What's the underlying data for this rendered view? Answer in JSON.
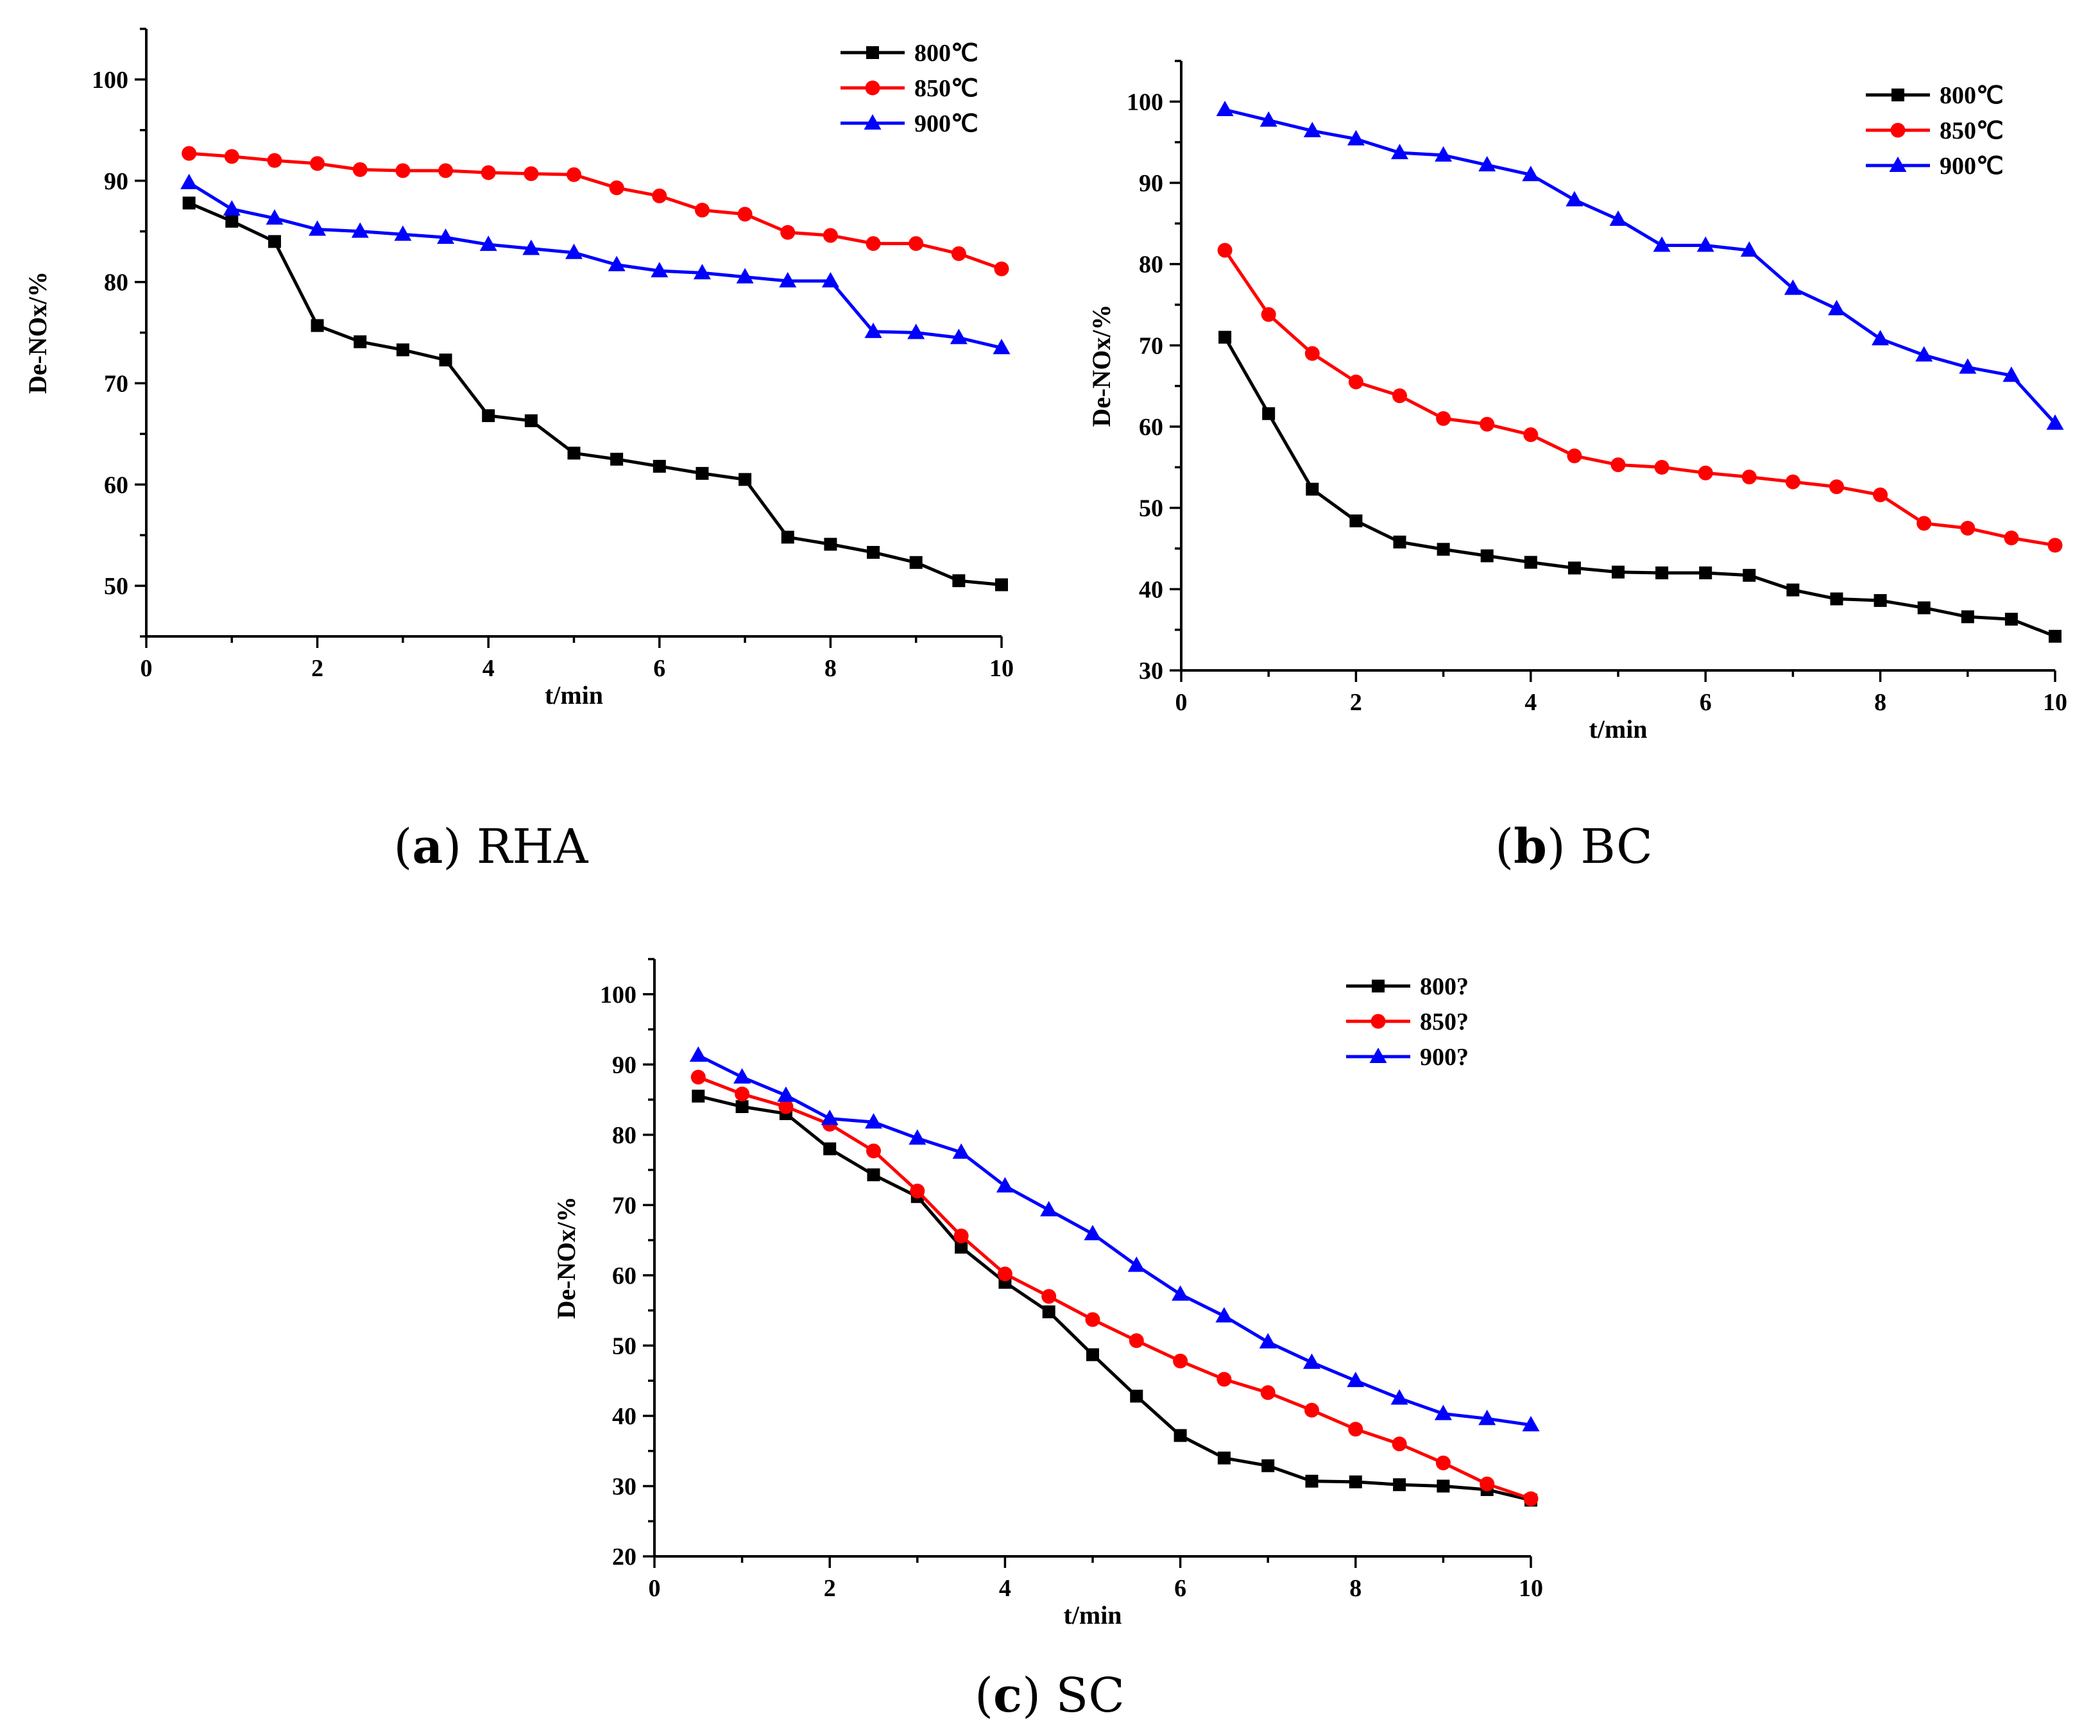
{
  "chart_data": [
    {
      "type": "line",
      "panel": "a",
      "caption_letter": "a",
      "caption_text": "RHA",
      "xlabel": "t/min",
      "ylabel": "De-NOx/%",
      "xlim": [
        0,
        10
      ],
      "ylim": [
        45,
        105
      ],
      "xticks": [
        0,
        2,
        4,
        6,
        8,
        10
      ],
      "yticks": [
        50,
        60,
        70,
        80,
        90,
        100
      ],
      "legend_position": "top-right",
      "x": [
        0.5,
        1,
        1.5,
        2,
        2.5,
        3,
        3.5,
        4,
        4.5,
        5,
        5.5,
        6,
        6.5,
        7,
        7.5,
        8,
        8.5,
        9,
        9.5,
        10
      ],
      "series": [
        {
          "name": "800℃",
          "color": "#000000",
          "marker": "square",
          "values": [
            87.8,
            86.0,
            84.0,
            75.7,
            74.1,
            73.3,
            72.3,
            66.8,
            66.3,
            63.1,
            62.5,
            61.8,
            61.1,
            60.5,
            54.8,
            54.1,
            53.3,
            52.3,
            50.5,
            50.1
          ]
        },
        {
          "name": "850℃",
          "color": "#ff0000",
          "marker": "circle",
          "values": [
            92.7,
            92.4,
            92.0,
            91.7,
            91.1,
            91.0,
            91.0,
            90.8,
            90.7,
            90.6,
            89.3,
            88.5,
            87.1,
            86.7,
            84.9,
            84.6,
            83.8,
            83.8,
            82.8,
            81.3
          ]
        },
        {
          "name": "900℃",
          "color": "#0000ff",
          "marker": "triangle",
          "values": [
            89.8,
            87.2,
            86.3,
            85.2,
            85.0,
            84.7,
            84.4,
            83.7,
            83.3,
            82.9,
            81.7,
            81.1,
            80.9,
            80.5,
            80.1,
            80.1,
            75.1,
            75.0,
            74.5,
            73.5
          ]
        }
      ]
    },
    {
      "type": "line",
      "panel": "b",
      "caption_letter": "b",
      "caption_text": "BC",
      "xlabel": "t/min",
      "ylabel": "De-NOx/%",
      "xlim": [
        0,
        10
      ],
      "ylim": [
        30,
        105
      ],
      "xticks": [
        0,
        2,
        4,
        6,
        8,
        10
      ],
      "yticks": [
        30,
        40,
        50,
        60,
        70,
        80,
        90,
        100
      ],
      "legend_position": "top-right",
      "x": [
        0.5,
        1,
        1.5,
        2,
        2.5,
        3,
        3.5,
        4,
        4.5,
        5,
        5.5,
        6,
        6.5,
        7,
        7.5,
        8,
        8.5,
        9,
        9.5,
        10
      ],
      "series": [
        {
          "name": "800℃",
          "color": "#000000",
          "marker": "square",
          "values": [
            71.0,
            61.6,
            52.3,
            48.4,
            45.8,
            44.9,
            44.1,
            43.3,
            42.6,
            42.1,
            42.0,
            42.0,
            41.7,
            39.9,
            38.8,
            38.6,
            37.7,
            36.6,
            36.3,
            34.2
          ]
        },
        {
          "name": "850℃",
          "color": "#ff0000",
          "marker": "circle",
          "values": [
            81.7,
            73.8,
            69.0,
            65.5,
            63.8,
            61.0,
            60.3,
            59.0,
            56.4,
            55.3,
            55.0,
            54.3,
            53.8,
            53.2,
            52.6,
            51.6,
            48.1,
            47.5,
            46.3,
            45.4
          ]
        },
        {
          "name": "900℃",
          "color": "#0000ff",
          "marker": "triangle",
          "values": [
            99.0,
            97.7,
            96.4,
            95.4,
            93.7,
            93.4,
            92.2,
            91.0,
            87.9,
            85.5,
            82.3,
            82.3,
            81.7,
            77.0,
            74.5,
            70.8,
            68.8,
            67.3,
            66.3,
            60.4
          ]
        }
      ]
    },
    {
      "type": "line",
      "panel": "c",
      "caption_letter": "c",
      "caption_text": "SC",
      "xlabel": "t/min",
      "ylabel": "De-NOx/%",
      "xlim": [
        0,
        10
      ],
      "ylim": [
        20,
        105
      ],
      "xticks": [
        0,
        2,
        4,
        6,
        8,
        10
      ],
      "yticks": [
        20,
        30,
        40,
        50,
        60,
        70,
        80,
        90,
        100
      ],
      "legend_position": "top-right",
      "x": [
        0.5,
        1,
        1.5,
        2,
        2.5,
        3,
        3.5,
        4,
        4.5,
        5,
        5.5,
        6,
        6.5,
        7,
        7.5,
        8,
        8.5,
        9,
        9.5,
        10
      ],
      "series": [
        {
          "name": "800?",
          "color": "#000000",
          "marker": "square",
          "values": [
            85.5,
            84.0,
            83.0,
            78.0,
            74.3,
            71.2,
            64.0,
            59.0,
            54.8,
            48.7,
            42.8,
            37.2,
            34.0,
            32.9,
            30.7,
            30.6,
            30.2,
            30.0,
            29.5,
            28.0
          ]
        },
        {
          "name": "850?",
          "color": "#ff0000",
          "marker": "circle",
          "values": [
            88.2,
            85.8,
            84.0,
            81.5,
            77.7,
            72.0,
            65.6,
            60.2,
            57.0,
            53.7,
            50.7,
            47.8,
            45.2,
            43.3,
            40.8,
            38.1,
            36.0,
            33.3,
            30.3,
            28.2
          ]
        },
        {
          "name": "900?",
          "color": "#0000ff",
          "marker": "triangle",
          "values": [
            91.3,
            88.2,
            85.6,
            82.3,
            81.8,
            79.5,
            77.5,
            72.7,
            69.3,
            65.9,
            61.4,
            57.3,
            54.2,
            50.5,
            47.6,
            45.0,
            42.5,
            40.3,
            39.6,
            38.7
          ]
        }
      ]
    }
  ]
}
